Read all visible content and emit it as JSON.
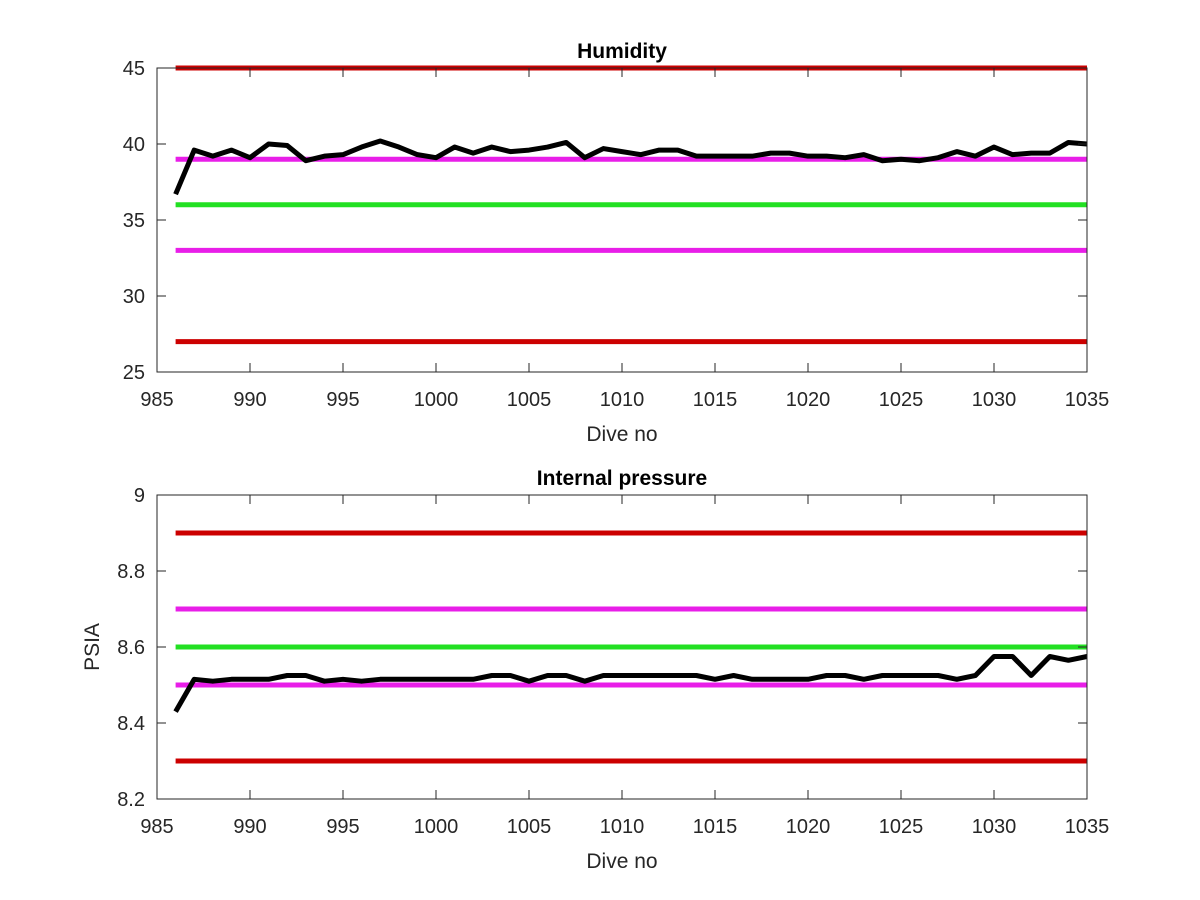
{
  "chart_data": [
    {
      "type": "line",
      "title": "Humidity",
      "xlabel": "Dive no",
      "ylabel": "",
      "xlim": [
        985,
        1035
      ],
      "ylim": [
        25,
        45
      ],
      "xticks": [
        "985",
        "990",
        "995",
        "1000",
        "1005",
        "1010",
        "1015",
        "1020",
        "1025",
        "1030",
        "1035"
      ],
      "yticks": [
        "25",
        "30",
        "35",
        "40",
        "45"
      ],
      "grid": false,
      "thresholds": [
        {
          "y": 45,
          "color": "#cc0000"
        },
        {
          "y": 39,
          "color": "#e81ee8"
        },
        {
          "y": 36,
          "color": "#22e022"
        },
        {
          "y": 33,
          "color": "#e81ee8"
        },
        {
          "y": 27,
          "color": "#cc0000"
        }
      ],
      "series": [
        {
          "color": "#000000",
          "x": [
            986,
            987,
            988,
            989,
            990,
            991,
            992,
            993,
            994,
            995,
            996,
            997,
            998,
            999,
            1000,
            1001,
            1002,
            1003,
            1004,
            1005,
            1006,
            1007,
            1008,
            1009,
            1010,
            1011,
            1012,
            1013,
            1014,
            1015,
            1016,
            1017,
            1018,
            1019,
            1020,
            1021,
            1022,
            1023,
            1024,
            1025,
            1026,
            1027,
            1028,
            1029,
            1030,
            1031,
            1032,
            1033,
            1034,
            1035
          ],
          "y": [
            36.7,
            39.6,
            39.2,
            39.6,
            39.1,
            40.0,
            39.9,
            38.9,
            39.2,
            39.3,
            39.8,
            40.2,
            39.8,
            39.3,
            39.1,
            39.8,
            39.4,
            39.8,
            39.5,
            39.6,
            39.8,
            40.1,
            39.1,
            39.7,
            39.5,
            39.3,
            39.6,
            39.6,
            39.2,
            39.2,
            39.2,
            39.2,
            39.4,
            39.4,
            39.2,
            39.2,
            39.1,
            39.3,
            38.9,
            39.0,
            38.9,
            39.1,
            39.5,
            39.2,
            39.8,
            39.3,
            39.4,
            39.4,
            40.1,
            40.0
          ]
        }
      ]
    },
    {
      "type": "line",
      "title": "Internal pressure",
      "xlabel": "Dive no",
      "ylabel": "PSIA",
      "xlim": [
        985,
        1035
      ],
      "ylim": [
        8.2,
        9.0
      ],
      "xticks": [
        "985",
        "990",
        "995",
        "1000",
        "1005",
        "1010",
        "1015",
        "1020",
        "1025",
        "1030",
        "1035"
      ],
      "yticks": [
        "8.2",
        "8.4",
        "8.6",
        "8.8",
        "9"
      ],
      "grid": false,
      "thresholds": [
        {
          "y": 8.9,
          "color": "#cc0000"
        },
        {
          "y": 8.7,
          "color": "#e81ee8"
        },
        {
          "y": 8.6,
          "color": "#22e022"
        },
        {
          "y": 8.5,
          "color": "#e81ee8"
        },
        {
          "y": 8.3,
          "color": "#cc0000"
        }
      ],
      "series": [
        {
          "color": "#000000",
          "x": [
            986,
            987,
            988,
            989,
            990,
            991,
            992,
            993,
            994,
            995,
            996,
            997,
            998,
            999,
            1000,
            1001,
            1002,
            1003,
            1004,
            1005,
            1006,
            1007,
            1008,
            1009,
            1010,
            1011,
            1012,
            1013,
            1014,
            1015,
            1016,
            1017,
            1018,
            1019,
            1020,
            1021,
            1022,
            1023,
            1024,
            1025,
            1026,
            1027,
            1028,
            1029,
            1030,
            1031,
            1032,
            1033,
            1034,
            1035
          ],
          "y": [
            8.43,
            8.515,
            8.51,
            8.515,
            8.515,
            8.515,
            8.525,
            8.525,
            8.51,
            8.515,
            8.51,
            8.515,
            8.515,
            8.515,
            8.515,
            8.515,
            8.515,
            8.525,
            8.525,
            8.51,
            8.525,
            8.525,
            8.51,
            8.525,
            8.525,
            8.525,
            8.525,
            8.525,
            8.525,
            8.515,
            8.525,
            8.515,
            8.515,
            8.515,
            8.515,
            8.525,
            8.525,
            8.515,
            8.525,
            8.525,
            8.525,
            8.525,
            8.515,
            8.525,
            8.575,
            8.575,
            8.525,
            8.575,
            8.565,
            8.575
          ]
        }
      ]
    }
  ]
}
